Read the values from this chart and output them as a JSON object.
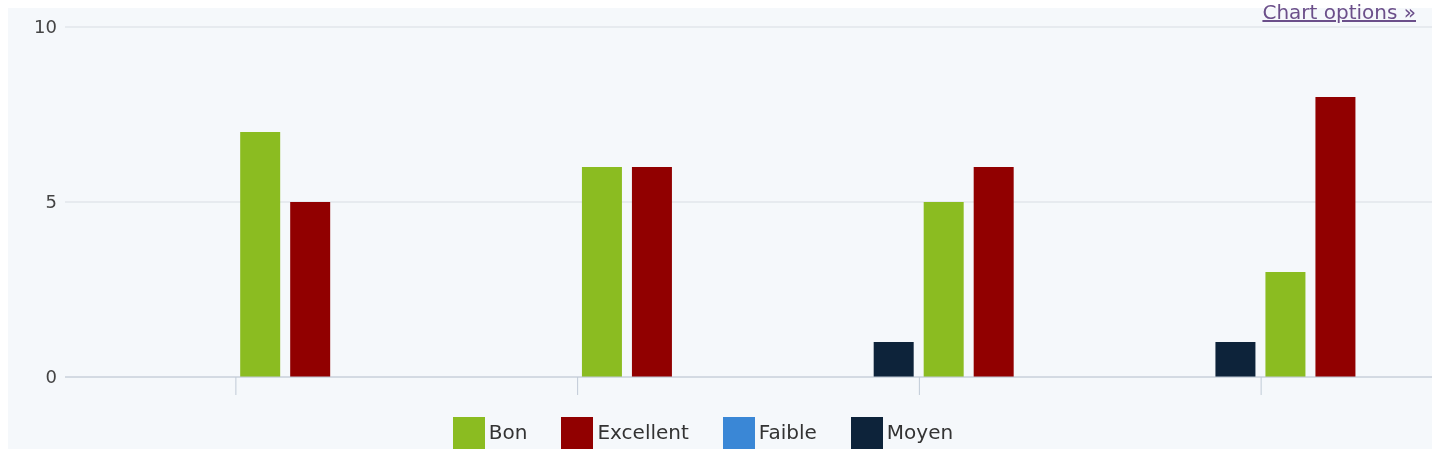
{
  "chart_data": {
    "type": "bar",
    "categories": [
      null,
      null,
      null,
      null
    ],
    "series": [
      {
        "name": "Faible",
        "color": "#3a87d6",
        "values": [
          0,
          0,
          0,
          0
        ]
      },
      {
        "name": "Moyen",
        "color": "#0d233a",
        "values": [
          0,
          0,
          1,
          1
        ]
      },
      {
        "name": "Bon",
        "color": "#8bbc21",
        "values": [
          7,
          6,
          5,
          3
        ]
      },
      {
        "name": "Excellent",
        "color": "#910000",
        "values": [
          5,
          6,
          6,
          8
        ]
      }
    ],
    "ylim": [
      0,
      10
    ],
    "yticks": [
      0,
      5,
      10
    ],
    "grid": "y",
    "legend": "bottom",
    "annotations": [
      "Chart options »"
    ]
  }
}
